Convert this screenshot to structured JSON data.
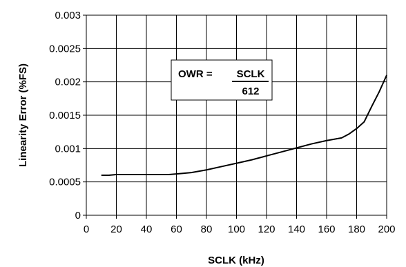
{
  "chart_data": {
    "type": "line",
    "title": "",
    "xlabel": "SCLK (kHz)",
    "ylabel": "Linearity Error (%FS)",
    "xlim": [
      0,
      200
    ],
    "ylim": [
      0,
      0.003
    ],
    "x_ticks": [
      0,
      20,
      40,
      60,
      80,
      100,
      120,
      140,
      160,
      180,
      200
    ],
    "x_tick_labels": [
      "0",
      "20",
      "40",
      "60",
      "80",
      "100",
      "120",
      "140",
      "160",
      "180",
      "200"
    ],
    "y_ticks": [
      0,
      0.0005,
      0.001,
      0.0015,
      0.002,
      0.0025,
      0.003
    ],
    "y_tick_labels": [
      "0",
      "0.0005",
      "0.001",
      "0.0015",
      "0.002",
      "0.0025",
      "0.003"
    ],
    "grid": true,
    "legend": "none",
    "line_color": "#000000",
    "series": [
      {
        "x": [
          10,
          15,
          20,
          30,
          40,
          50,
          55,
          60,
          70,
          80,
          90,
          100,
          110,
          120,
          130,
          140,
          150,
          160,
          170,
          175,
          180,
          185,
          190,
          195,
          200
        ],
        "y": [
          0.0006,
          0.0006,
          0.00061,
          0.00061,
          0.00061,
          0.00061,
          0.00061,
          0.00062,
          0.00064,
          0.00068,
          0.00073,
          0.00078,
          0.00083,
          0.00089,
          0.00095,
          0.00101,
          0.00107,
          0.00112,
          0.00116,
          0.00122,
          0.0013,
          0.0014,
          0.00163,
          0.00185,
          0.0021
        ]
      }
    ],
    "annotation": {
      "lhs": "OWR = ",
      "numerator": "SCLK",
      "denominator": "612"
    }
  }
}
